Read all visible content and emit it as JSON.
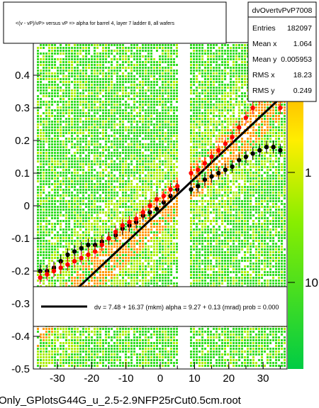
{
  "title": "<(v - vP)/vP> versus   vP => alpha for barrel 4, layer 7 ladder 8, all wafers",
  "stats": {
    "name": "dvOvertvPvP7008",
    "rows": [
      {
        "label": "Entries",
        "value": "182097"
      },
      {
        "label": "Mean x",
        "value": "1.064"
      },
      {
        "label": "Mean y",
        "value": "0.005953"
      },
      {
        "label": "RMS x",
        "value": "18.23"
      },
      {
        "label": "RMS y",
        "value": "0.249"
      }
    ]
  },
  "fit_legend": "dv =    7.48 +  16.37 (mkm) alpha =    9.27 +  0.13 (mrad) prob = 0.000",
  "footer": "Only_GPlotsG44G_u_2.5-2.9NFP25rCut0.5cm.root",
  "colors": {
    "frame": "#000000",
    "fit_line": "#000000",
    "red_profile": "#ff0000",
    "black_profile": "#000000",
    "hist_low": "#33dd22",
    "hist_mid": "#aaee00",
    "hist_high": "#ff9900"
  },
  "chart_data": {
    "type": "scatter",
    "xlim": [
      -37,
      37
    ],
    "ylim": [
      -0.5,
      0.5
    ],
    "xticks": [
      -30,
      -20,
      -10,
      0,
      10,
      20,
      30
    ],
    "yticks": [
      -0.5,
      -0.4,
      -0.3,
      -0.2,
      -0.1,
      0,
      0.1,
      0.2,
      0.3,
      0.4
    ],
    "yticks_text": [
      "-0.5",
      "-0.4",
      "-0.3",
      "-0.2",
      "-0.1",
      "0",
      "0.1",
      "0.2",
      "0.3",
      "0.4"
    ],
    "xticks_text": [
      "-30",
      "-20",
      "-10",
      "0",
      "10",
      "20",
      "30"
    ],
    "zscale": "log",
    "zticks_text": [
      "10",
      "1"
    ],
    "gap_x": [
      5,
      8
    ],
    "fit_line": {
      "x": [
        -35,
        35
      ],
      "y": [
        -0.36,
        0.33
      ]
    },
    "series": [
      {
        "kind": "black-profile",
        "x": [
          -35,
          -33,
          -31,
          -29,
          -27,
          -25,
          -23,
          -21,
          -19,
          -17,
          -15,
          -13,
          -11,
          -9,
          -7,
          -5,
          -3,
          -1,
          1,
          3,
          5,
          9,
          11,
          13,
          15,
          17,
          19,
          21,
          23,
          25,
          27,
          29,
          31,
          33,
          35
        ],
        "y": [
          -0.2,
          -0.2,
          -0.19,
          -0.17,
          -0.15,
          -0.14,
          -0.13,
          -0.12,
          -0.12,
          -0.11,
          -0.1,
          -0.09,
          -0.07,
          -0.06,
          -0.05,
          -0.03,
          -0.02,
          -0.01,
          0.01,
          0.03,
          0.05,
          0.05,
          0.06,
          0.08,
          0.09,
          0.1,
          0.11,
          0.12,
          0.14,
          0.15,
          0.16,
          0.17,
          0.18,
          0.18,
          0.17
        ]
      },
      {
        "kind": "red-profile",
        "x": [
          -35,
          -33,
          -31,
          -29,
          -27,
          -25,
          -23,
          -21,
          -19,
          -17,
          -15,
          -13,
          -11,
          -9,
          -7,
          -5,
          -3,
          -1,
          1,
          3,
          5,
          9,
          11,
          13,
          15,
          17,
          19,
          21,
          23,
          25,
          27,
          29,
          31,
          33,
          35
        ],
        "y": [
          -0.22,
          -0.21,
          -0.2,
          -0.19,
          -0.18,
          -0.17,
          -0.16,
          -0.15,
          -0.14,
          -0.12,
          -0.1,
          -0.08,
          -0.06,
          -0.05,
          -0.04,
          -0.02,
          0.0,
          0.02,
          0.03,
          0.05,
          0.06,
          0.1,
          0.11,
          0.13,
          0.15,
          0.17,
          0.19,
          0.21,
          0.24,
          0.27,
          0.3,
          0.33,
          0.35,
          0.37,
          0.3
        ]
      }
    ]
  }
}
